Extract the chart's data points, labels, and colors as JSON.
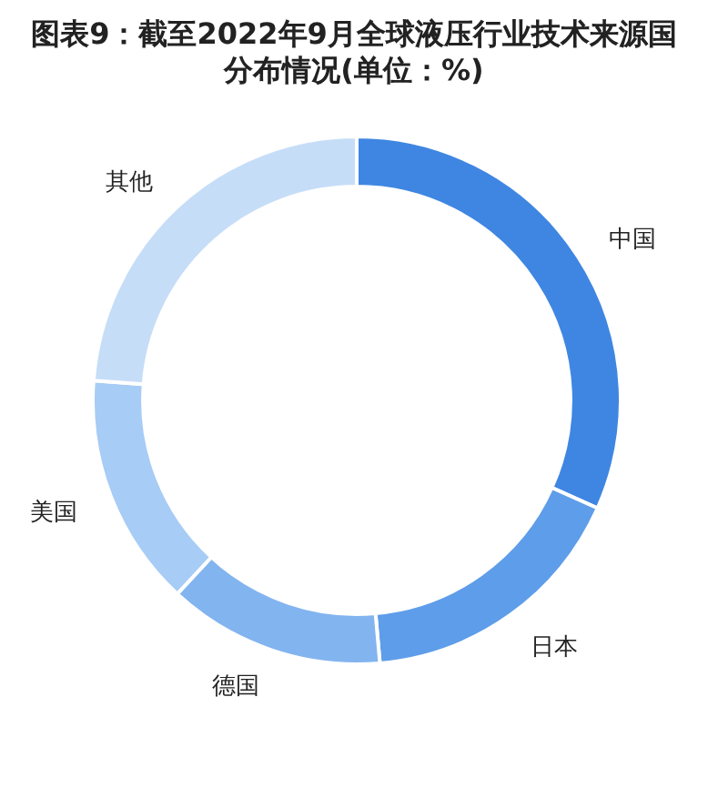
{
  "chart_data": {
    "type": "donut",
    "title": "图表9：截至2022年9月全球液压行业技术来源国分布情况(单位：%)",
    "categories": [
      "中国",
      "日本",
      "德国",
      "美国",
      "其他"
    ],
    "values": [
      31.7,
      16.9,
      13.3,
      14.3,
      23.8
    ],
    "colors": [
      "#3f86e2",
      "#5e9de9",
      "#82b4ef",
      "#a7ccf5",
      "#c6ddf8"
    ],
    "legend": false
  }
}
